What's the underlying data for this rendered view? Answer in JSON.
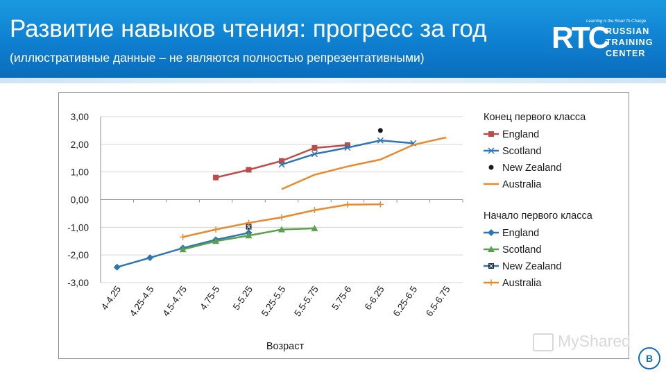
{
  "slide": {
    "title": "Развитие навыков чтения: прогресс за год",
    "subtitle": "(иллюстративные данные – не являются полностью репрезентативными)",
    "logo": {
      "mark": "RTC",
      "tagline": "Learning is the Road To Change",
      "line1": "RUSSIAN",
      "line2": "TRAINING",
      "line3": "CENTER"
    },
    "watermark": "MyShared",
    "corner_badge": "В"
  },
  "chart_data": {
    "type": "line",
    "xlabel": "Возраст",
    "ylabel": "",
    "ylim": [
      -3,
      3
    ],
    "y_ticks": [
      "3,00",
      "2,00",
      "1,00",
      "0,00",
      "-1,00",
      "-2,00",
      "-3,00"
    ],
    "y_tick_values": [
      3,
      2,
      1,
      0,
      -1,
      -2,
      -3
    ],
    "categories": [
      "4-4.25",
      "4.25-4.5",
      "4.5-4.75",
      "4.75-5",
      "5-5.25",
      "5.25-5.5",
      "5.5-5.75",
      "5.75-6",
      "6-6.25",
      "6.25-6.5",
      "6.5-6.75"
    ],
    "grid": true,
    "legend_position": "right",
    "groups": [
      {
        "title": "Конец первого класса",
        "series": [
          {
            "name": "England",
            "color": "#be4b48",
            "marker": "square",
            "values": [
              null,
              null,
              null,
              0.8,
              1.08,
              1.4,
              1.87,
              1.97,
              null,
              null,
              null
            ]
          },
          {
            "name": "Scotland",
            "color": "#2e75b6",
            "marker": "x",
            "values": [
              null,
              null,
              null,
              null,
              null,
              1.27,
              1.65,
              1.88,
              2.14,
              2.04,
              null
            ]
          },
          {
            "name": "New Zealand",
            "color": "#1a1a1a",
            "marker": "dot",
            "values": [
              null,
              null,
              null,
              null,
              null,
              null,
              null,
              null,
              2.5,
              null,
              null
            ]
          },
          {
            "name": "Australia",
            "color": "#e8892b",
            "marker": "none",
            "values": [
              null,
              null,
              null,
              null,
              null,
              0.38,
              0.9,
              1.2,
              1.45,
              1.98,
              2.25
            ]
          }
        ]
      },
      {
        "title": "Начало первого класса",
        "series": [
          {
            "name": "England",
            "color": "#2e75b6",
            "marker": "diamond",
            "values": [
              -2.44,
              -2.1,
              -1.75,
              -1.45,
              -1.2,
              null,
              null,
              null,
              null,
              null,
              null
            ]
          },
          {
            "name": "Scotland",
            "color": "#5aa14b",
            "marker": "triangle",
            "values": [
              null,
              null,
              -1.8,
              -1.5,
              -1.3,
              -1.08,
              -1.04,
              null,
              null,
              null,
              null
            ]
          },
          {
            "name": "New Zealand",
            "color": "#2e75b6",
            "marker": "boxx",
            "values": [
              null,
              null,
              null,
              null,
              -0.98,
              null,
              null,
              null,
              null,
              null,
              null
            ]
          },
          {
            "name": "Australia",
            "color": "#e8892b",
            "marker": "plus",
            "values": [
              null,
              null,
              -1.35,
              -1.08,
              -0.84,
              -0.64,
              -0.38,
              -0.18,
              -0.17,
              null,
              null
            ]
          }
        ]
      }
    ]
  }
}
